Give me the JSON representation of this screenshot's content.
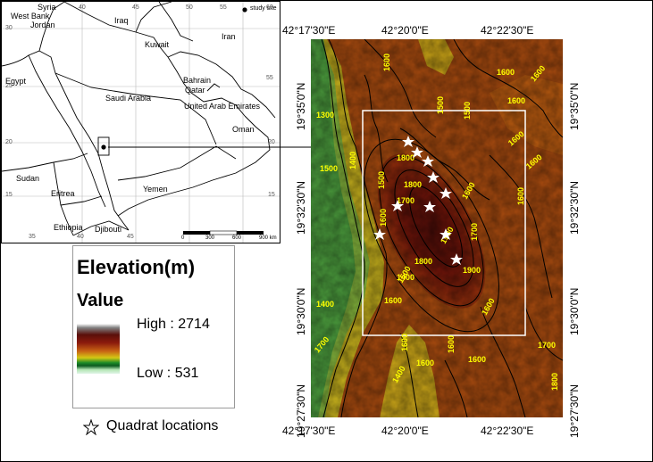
{
  "locator_map": {
    "countries": [
      "Syria",
      "West Bank",
      "Jordan",
      "Iraq",
      "Iran",
      "Kuwait",
      "Egypt",
      "Saudi Arabia",
      "Bahrain",
      "Qatar",
      "United Arab Emirates",
      "Oman",
      "Sudan",
      "Eritrea",
      "Yemen",
      "Ethiopia",
      "Djibouti"
    ],
    "legend_label": "study site",
    "lon_ticks": [
      "40",
      "45",
      "50",
      "55",
      "60",
      "35",
      "40",
      "45",
      "55"
    ],
    "lat_ticks": [
      "30",
      "25",
      "20",
      "15",
      "20",
      "15"
    ],
    "scalebar": [
      "0",
      "300",
      "600",
      "900 km"
    ],
    "colors": {
      "border": "#000000",
      "site_marker": "#000000"
    }
  },
  "legend": {
    "title": "Elevation(m)",
    "value_label": "Value",
    "high_label": "High : 2714",
    "low_label": "Low : 531",
    "ramp_colors": [
      "#ffffff",
      "#808080",
      "#5a0f0a",
      "#8b1a0c",
      "#c86414",
      "#d4c814",
      "#1e8c28",
      "#0a5a1e",
      "#b4e6b4",
      "#e0f5e8"
    ],
    "quadrat_label": "Quadrat locations",
    "quadrat_icon": "star-outline-icon"
  },
  "dem_map": {
    "top_lon_labels": [
      "42°17'30\"E",
      "42°20'0\"E",
      "42°22'30\"E"
    ],
    "bottom_lon_labels": [
      "42°17'30\"E",
      "42°20'0\"E",
      "42°22'30\"E"
    ],
    "left_lat_labels": [
      "19°35'0\"N",
      "19°32'30\"N",
      "19°30'0\"N",
      "19°27'30\"N"
    ],
    "right_lat_labels": [
      "19°35'0\"N",
      "19°32'30\"N",
      "19°30'0\"N",
      "19°27'30\"N"
    ],
    "contour_labels": [
      "1600",
      "1600",
      "1500",
      "1500",
      "1300",
      "1600",
      "1600",
      "1600",
      "1600",
      "1500",
      "1600",
      "1400",
      "1800",
      "1500",
      "1800",
      "1700",
      "1600",
      "1600",
      "1700",
      "1800",
      "1900",
      "1900",
      "1400",
      "1500",
      "1600",
      "1600",
      "1700",
      "1400",
      "1600",
      "1600",
      "1600",
      "1400",
      "1700",
      "1600",
      "1800"
    ],
    "quadrat_icon": "star-icon",
    "colors": {
      "contour": "#000000",
      "contour_label": "#ffff00",
      "study_box": "#ffffff",
      "quadrat": "#ffffff"
    }
  }
}
